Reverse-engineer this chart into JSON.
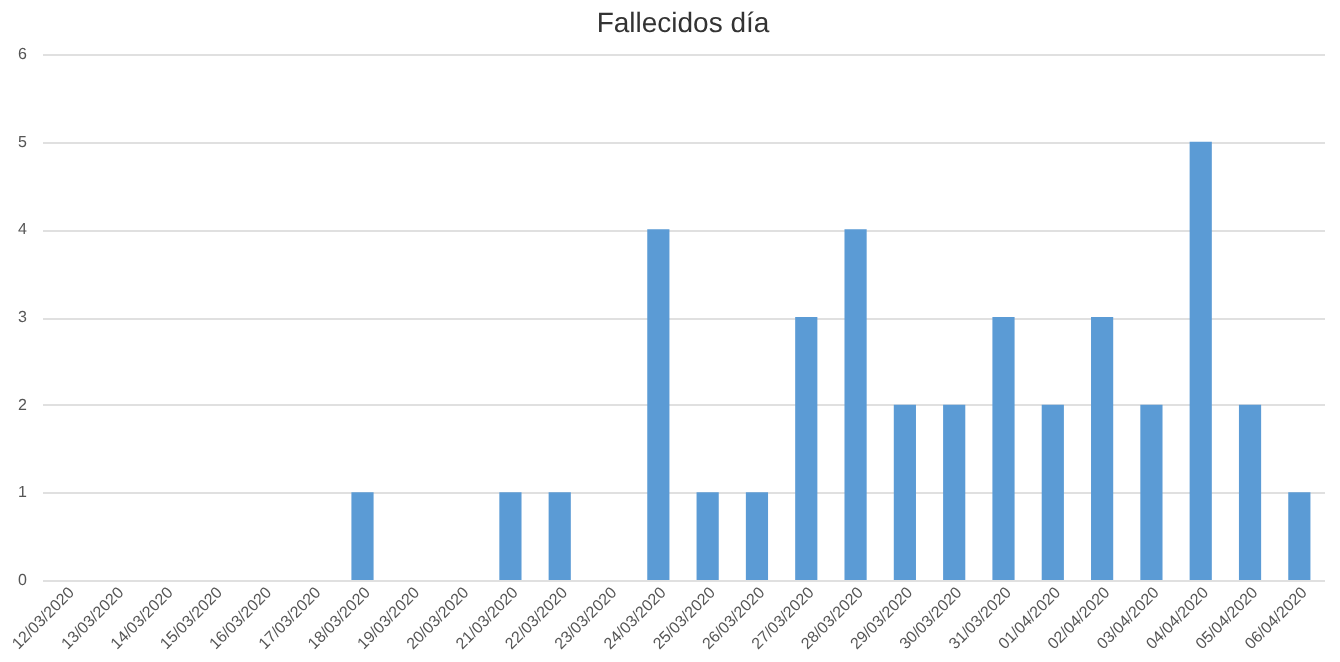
{
  "chart_data": {
    "type": "bar",
    "title": "Fallecidos día",
    "categories": [
      "12/03/2020",
      "13/03/2020",
      "14/03/2020",
      "15/03/2020",
      "16/03/2020",
      "17/03/2020",
      "18/03/2020",
      "19/03/2020",
      "20/03/2020",
      "21/03/2020",
      "22/03/2020",
      "23/03/2020",
      "24/03/2020",
      "25/03/2020",
      "26/03/2020",
      "27/03/2020",
      "28/03/2020",
      "29/03/2020",
      "30/03/2020",
      "31/03/2020",
      "01/04/2020",
      "02/04/2020",
      "03/04/2020",
      "04/04/2020",
      "05/04/2020",
      "06/04/2020"
    ],
    "values": [
      0,
      0,
      0,
      0,
      0,
      0,
      1,
      0,
      0,
      1,
      1,
      0,
      4,
      1,
      1,
      3,
      4,
      2,
      2,
      3,
      2,
      3,
      2,
      5,
      2,
      1
    ],
    "color": "#5b9bd5",
    "ylim": [
      0,
      6
    ],
    "yticks": [
      0,
      1,
      2,
      3,
      4,
      5,
      6
    ],
    "grid": "y"
  }
}
